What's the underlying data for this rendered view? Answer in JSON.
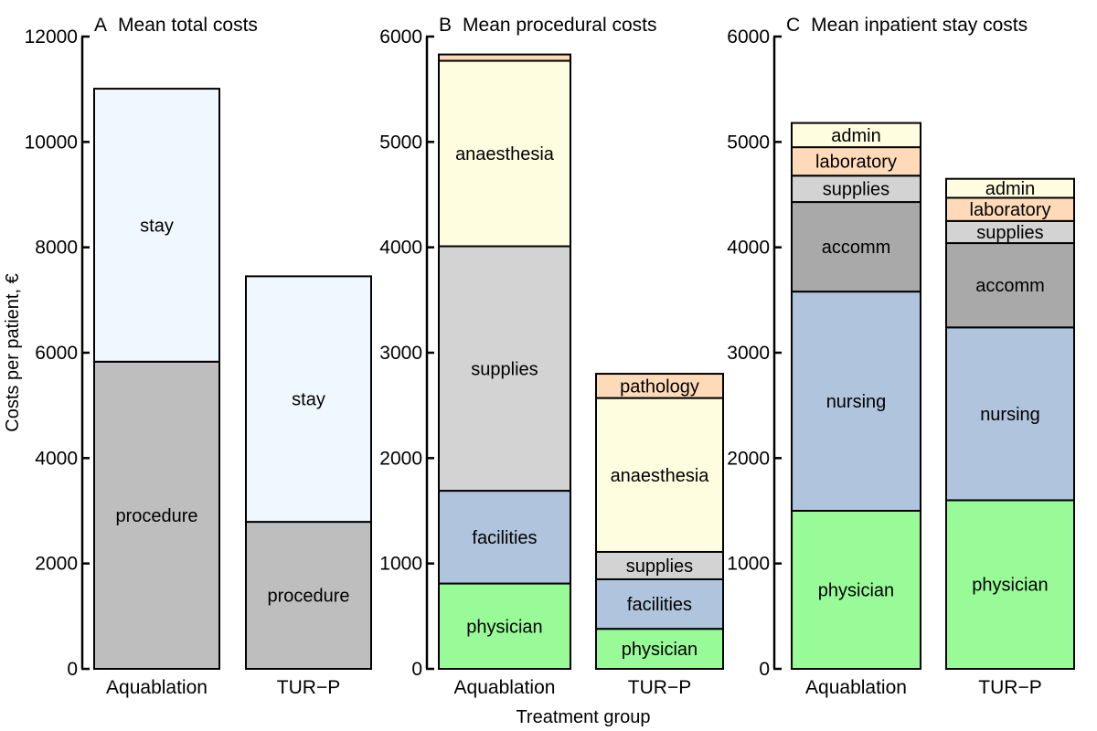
{
  "chart_data": [
    {
      "type": "bar",
      "stacked": true,
      "panel_letter": "A",
      "title": "Mean total costs",
      "ylim": [
        0,
        12000
      ],
      "yticks": [
        0,
        2000,
        4000,
        6000,
        8000,
        10000,
        12000
      ],
      "categories": [
        "Aquablation",
        "TUR−P"
      ],
      "series": [
        {
          "name": "procedure",
          "color": "#bebebe",
          "values": [
            5830,
            2790
          ]
        },
        {
          "name": "stay",
          "color": "#f0f8ff",
          "values": [
            5180,
            4660
          ]
        }
      ]
    },
    {
      "type": "bar",
      "stacked": true,
      "panel_letter": "B",
      "title": "Mean procedural costs",
      "ylim": [
        0,
        6000
      ],
      "yticks": [
        0,
        1000,
        2000,
        3000,
        4000,
        5000,
        6000
      ],
      "categories": [
        "Aquablation",
        "TUR−P"
      ],
      "series": [
        {
          "name": "physician",
          "color": "#98fb98",
          "values": [
            810,
            380
          ]
        },
        {
          "name": "facilities",
          "color": "#b0c4de",
          "values": [
            880,
            470
          ]
        },
        {
          "name": "supplies",
          "color": "#d3d3d3",
          "values": [
            2320,
            260
          ]
        },
        {
          "name": "anaesthesia",
          "color": "#fffde0",
          "values": [
            1760,
            1460
          ]
        },
        {
          "name": "pathology",
          "color": "#ffdab9",
          "values": [
            60,
            230
          ]
        }
      ],
      "segment_labels_shown": [
        [
          "physician",
          "facilities",
          "supplies",
          "anaesthesia",
          ""
        ],
        [
          "physician",
          "facilities",
          "supplies",
          "anaesthesia",
          "pathology"
        ]
      ]
    },
    {
      "type": "bar",
      "stacked": true,
      "panel_letter": "C",
      "title": "Mean inpatient stay costs",
      "ylim": [
        0,
        6000
      ],
      "yticks": [
        0,
        1000,
        2000,
        3000,
        4000,
        5000,
        6000
      ],
      "categories": [
        "Aquablation",
        "TUR−P"
      ],
      "series": [
        {
          "name": "physician",
          "color": "#98fb98",
          "values": [
            1500,
            1600
          ]
        },
        {
          "name": "nursing",
          "color": "#b0c4de",
          "values": [
            2080,
            1640
          ]
        },
        {
          "name": "accomm",
          "color": "#a9a9a9",
          "values": [
            850,
            800
          ]
        },
        {
          "name": "supplies",
          "color": "#d3d3d3",
          "values": [
            250,
            210
          ]
        },
        {
          "name": "laboratory",
          "color": "#ffdab9",
          "values": [
            270,
            220
          ]
        },
        {
          "name": "admin",
          "color": "#fffde0",
          "values": [
            230,
            180
          ]
        }
      ]
    }
  ],
  "axes": {
    "ylabel": "Costs per patient, €",
    "xlabel": "Treatment group"
  }
}
